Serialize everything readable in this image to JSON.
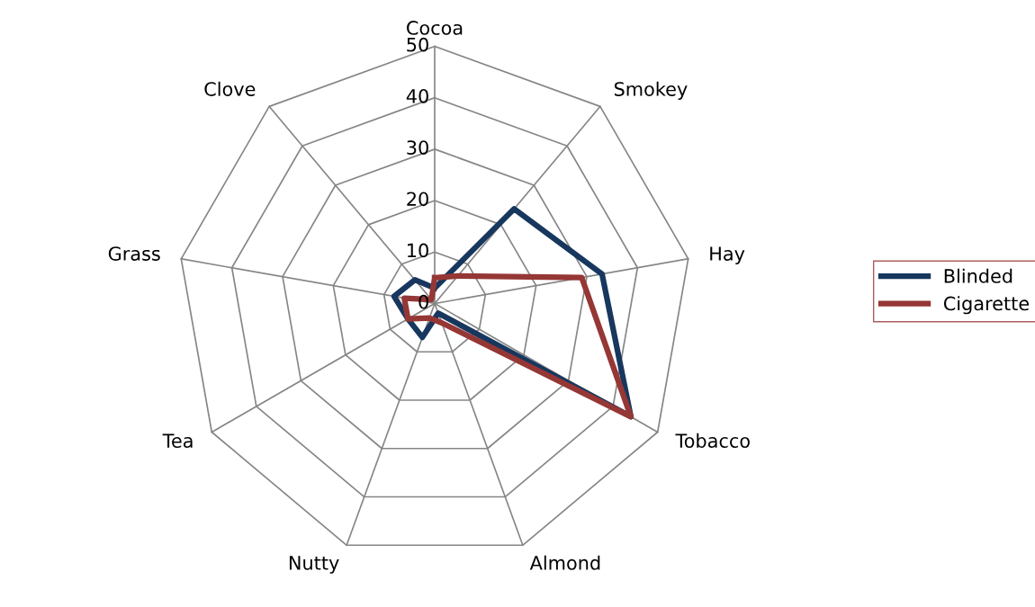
{
  "chart_data": {
    "type": "radar",
    "categories": [
      "Cocoa",
      "Smokey",
      "Hay",
      "Tobacco",
      "Almond",
      "Nutty",
      "Tea",
      "Grass",
      "Clove"
    ],
    "series": [
      {
        "name": "Blinded",
        "color": "#17375e",
        "values": [
          3,
          24,
          33,
          44,
          2,
          7,
          6,
          8,
          6
        ]
      },
      {
        "name": "Cigarette",
        "color": "#953735",
        "values": [
          5,
          7,
          29,
          44,
          4,
          3,
          6,
          6,
          1
        ]
      }
    ],
    "ylim": [
      0,
      50
    ],
    "yticks": [
      0,
      10,
      20,
      30,
      40,
      50
    ],
    "grid": true,
    "legend": "right"
  }
}
